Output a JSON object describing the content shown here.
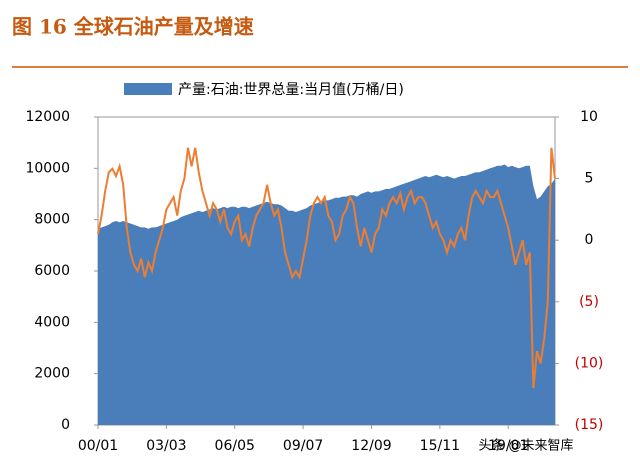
{
  "chart_data": {
    "type": "area-line",
    "title": "图 16 全球石油产量及增速",
    "annotation": "头条 @未来智库",
    "categories": [
      "00/01",
      null,
      null,
      null,
      null,
      null,
      null,
      null,
      null,
      null,
      null,
      null,
      null,
      null,
      null,
      null,
      null,
      null,
      null,
      "03/03",
      null,
      null,
      null,
      null,
      null,
      null,
      null,
      null,
      null,
      null,
      null,
      null,
      null,
      null,
      null,
      null,
      null,
      null,
      "06/05",
      null,
      null,
      null,
      null,
      null,
      null,
      null,
      null,
      null,
      null,
      null,
      null,
      null,
      null,
      null,
      null,
      null,
      null,
      "09/07",
      null,
      null,
      null,
      null,
      null,
      null,
      null,
      null,
      null,
      null,
      null,
      null,
      null,
      null,
      null,
      null,
      null,
      null,
      "12/09",
      null,
      null,
      null,
      null,
      null,
      null,
      null,
      null,
      null,
      null,
      null,
      null,
      null,
      null,
      null,
      null,
      null,
      null,
      "15/11",
      null,
      null,
      null,
      null,
      null,
      null,
      null,
      null,
      null,
      null,
      null,
      null,
      null,
      null,
      null,
      null,
      null,
      null,
      "19/01",
      null,
      null,
      null,
      null,
      null,
      null,
      null,
      null,
      null,
      null,
      null,
      null,
      null
    ],
    "series": [
      {
        "name": "产量:石油:世界总量:当月值(万桶/日)",
        "color": "#4a7ebb",
        "values": [
          7650,
          7700,
          7750,
          7800,
          7900,
          7950,
          7900,
          7950,
          7900,
          7850,
          7800,
          7750,
          7700,
          7700,
          7650,
          7700,
          7700,
          7750,
          7800,
          7850,
          7900,
          7950,
          8000,
          8100,
          8150,
          8200,
          8250,
          8300,
          8350,
          8300,
          8350,
          8400,
          8450,
          8400,
          8450,
          8500,
          8450,
          8500,
          8500,
          8450,
          8500,
          8500,
          8450,
          8500,
          8550,
          8600,
          8650,
          8700,
          8650,
          8600,
          8600,
          8550,
          8450,
          8350,
          8350,
          8300,
          8350,
          8400,
          8450,
          8550,
          8600,
          8650,
          8700,
          8750,
          8750,
          8800,
          8850,
          8850,
          8900,
          8900,
          8950,
          8950,
          8900,
          9000,
          9050,
          9100,
          9050,
          9100,
          9100,
          9150,
          9200,
          9200,
          9250,
          9300,
          9350,
          9400,
          9450,
          9500,
          9550,
          9600,
          9650,
          9700,
          9650,
          9700,
          9750,
          9700,
          9650,
          9700,
          9650,
          9600,
          9650,
          9700,
          9700,
          9750,
          9800,
          9850,
          9850,
          9900,
          9950,
          10000,
          10050,
          10100,
          10100,
          10150,
          10050,
          10100,
          10050,
          10000,
          10050,
          10100,
          10100,
          9300,
          8800,
          8900,
          9100,
          9300,
          9400,
          9600
        ]
      },
      {
        "color": "#ed7d31",
        "axis": "y2",
        "values": [
          0.5,
          2,
          4,
          5.5,
          5.8,
          5.2,
          6,
          4.5,
          1,
          -1,
          -2,
          -2.5,
          -1.5,
          -3,
          -1.8,
          -2.5,
          -1,
          0,
          1,
          2.5,
          3,
          3.5,
          2,
          4,
          5,
          7.5,
          6,
          7.5,
          5.5,
          4,
          3,
          2,
          3,
          2.5,
          1.5,
          2.5,
          1,
          0.5,
          1.5,
          2,
          0,
          0.5,
          -0.5,
          1,
          2,
          2.5,
          3,
          4.5,
          3,
          2,
          2.5,
          1,
          -1,
          -2,
          -3,
          -2.5,
          -3,
          -1.5,
          0,
          2,
          3,
          3.5,
          3,
          3.5,
          2,
          1.5,
          0,
          0.5,
          2,
          2.5,
          3.5,
          3,
          1,
          -0.5,
          1,
          0,
          -1,
          0.5,
          1,
          2.5,
          2,
          3,
          3.5,
          3,
          3.8,
          2.5,
          3.5,
          4,
          3,
          3.5,
          3.5,
          3,
          2,
          1,
          1.5,
          0.5,
          0,
          -1,
          0,
          -0.5,
          0.5,
          1,
          0,
          2,
          3.5,
          4,
          3.5,
          3,
          4,
          3.5,
          3.5,
          4,
          3,
          2,
          1,
          -0.5,
          -2,
          -1,
          0,
          -2,
          -1,
          -12,
          -9,
          -10,
          -8,
          -5,
          7.5,
          5
        ]
      }
    ],
    "ylim": [
      0,
      12000
    ],
    "yticks": [
      0,
      2000,
      4000,
      6000,
      8000,
      10000,
      12000
    ],
    "y2lim": [
      -15,
      10
    ],
    "y2ticks": [
      {
        "value": -15,
        "label": "(15)"
      },
      {
        "value": -10,
        "label": "(10)"
      },
      {
        "value": -5,
        "label": "(5)"
      },
      0,
      5,
      10
    ]
  }
}
